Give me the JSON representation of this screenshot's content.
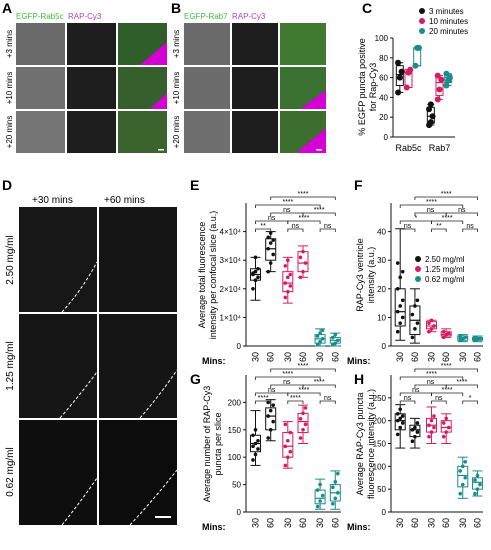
{
  "panels": {
    "A": {
      "letter": "A",
      "label_egfp": "EGFP-Rab5c",
      "label_rap": "RAP-Cy3",
      "rows": [
        "+3 mins",
        "+10 mins",
        "+20 mins"
      ]
    },
    "B": {
      "letter": "B",
      "label_egfp": "EGFP-Rab7",
      "label_rap": "RAP-Cy3",
      "rows": [
        "+3 mins",
        "+10 mins",
        "+20 mins"
      ]
    },
    "D": {
      "letter": "D",
      "cols": [
        "+30 mins",
        "+60 mins"
      ],
      "rows": [
        "2.50 mg/ml",
        "1.25 mg/ml",
        "0.62 mg/ml"
      ]
    }
  },
  "colors": {
    "c250": "#111111",
    "c125": "#d81b60",
    "c062": "#1a8c8c",
    "egfp": "#3fbf3f",
    "rap": "#b040c0",
    "sig": "#222222"
  },
  "chart_data": [
    {
      "panel": "C",
      "type": "box",
      "ylabel": "% EGFP puncta positive for Rap-Cy3",
      "ylim": [
        0,
        100
      ],
      "yticks": [
        0,
        20,
        40,
        60,
        80,
        100
      ],
      "categories": [
        "Rab5c",
        "Rab7"
      ],
      "legend": {
        "placement": "top-right",
        "entries": [
          "3 minutes",
          "10 minutes",
          "20 minutes"
        ]
      },
      "groups": [
        {
          "category": "Rab5c",
          "series": "3 minutes",
          "color": "c250",
          "points": [
            45,
            60,
            66,
            75
          ],
          "box": [
            45,
            52,
            63,
            72,
            75
          ]
        },
        {
          "category": "Rab5c",
          "series": "10 minutes",
          "color": "c125",
          "points": [
            50,
            65,
            68
          ],
          "box": [
            50,
            50,
            65,
            68,
            68
          ]
        },
        {
          "category": "Rab5c",
          "series": "20 minutes",
          "color": "c062",
          "points": [
            72,
            90,
            90
          ],
          "box": [
            72,
            72,
            90,
            90,
            90
          ]
        },
        {
          "category": "Rab7",
          "series": "3 minutes",
          "color": "c250",
          "points": [
            12,
            15,
            21,
            28,
            33
          ],
          "box": [
            12,
            14,
            21,
            30,
            33
          ]
        },
        {
          "category": "Rab7",
          "series": "10 minutes",
          "color": "c125",
          "points": [
            38,
            48,
            58,
            62
          ],
          "box": [
            38,
            42,
            55,
            60,
            62
          ]
        },
        {
          "category": "Rab7",
          "series": "20 minutes",
          "color": "c062",
          "points": [
            52,
            57,
            60,
            64
          ],
          "box": [
            52,
            55,
            60,
            63,
            64
          ]
        }
      ]
    },
    {
      "panel": "E",
      "type": "box",
      "ylabel": "Average total fluorescence intensity per confocal slice (a.u.)",
      "ylim": [
        0,
        50000
      ],
      "yticks": [
        0,
        10000,
        20000,
        30000,
        40000
      ],
      "ytick_labels": [
        "0",
        "1×10⁴",
        "2×10⁴",
        "3×10⁴",
        "4×10⁴"
      ],
      "xlabel": "Mins:",
      "categories": [
        "30",
        "60",
        "30",
        "60",
        "30",
        "60"
      ],
      "groups": [
        {
          "color": "c250",
          "points": [
            20000,
            23000,
            24000,
            25000,
            26000,
            27000,
            25500,
            31000
          ],
          "box": [
            16000,
            23000,
            25000,
            27000,
            31000
          ]
        },
        {
          "color": "c250",
          "points": [
            26000,
            29000,
            32000,
            34000,
            36000,
            37000,
            38000,
            39500
          ],
          "box": [
            26000,
            30000,
            34000,
            37500,
            40000
          ]
        },
        {
          "color": "c125",
          "points": [
            17000,
            19000,
            21000,
            22000,
            24000,
            25000,
            28000,
            30000
          ],
          "box": [
            15000,
            19000,
            22000,
            26000,
            31000
          ]
        },
        {
          "color": "c125",
          "points": [
            24000,
            26000,
            29000,
            31000,
            33000
          ],
          "box": [
            24000,
            26000,
            29000,
            33000,
            35000
          ]
        },
        {
          "color": "c062",
          "points": [
            500,
            1500,
            2500,
            3500,
            4500,
            5500
          ],
          "box": [
            0,
            1000,
            2500,
            4000,
            6000
          ]
        },
        {
          "color": "c062",
          "points": [
            500,
            1000,
            2000,
            3000,
            4000
          ],
          "box": [
            0,
            1000,
            2000,
            3000,
            4500
          ]
        }
      ],
      "significance": [
        {
          "from": 0,
          "to": 1,
          "label": "**",
          "level": 0
        },
        {
          "from": 2,
          "to": 3,
          "label": "ns",
          "level": 0
        },
        {
          "from": 4,
          "to": 5,
          "label": "ns",
          "level": 0
        },
        {
          "from": 0,
          "to": 2,
          "label": "ns",
          "level": 1
        },
        {
          "from": 2,
          "to": 4,
          "label": "****",
          "level": 1
        },
        {
          "from": 1,
          "to": 3,
          "label": "ns",
          "level": 2
        },
        {
          "from": 3,
          "to": 5,
          "label": "****",
          "level": 2
        },
        {
          "from": 0,
          "to": 4,
          "label": "****",
          "level": 3
        },
        {
          "from": 1,
          "to": 5,
          "label": "****",
          "level": 4
        }
      ]
    },
    {
      "panel": "F",
      "type": "box",
      "ylabel": "RAP-Cy3 ventricle intensity (a.u.)",
      "ylim": [
        0,
        50
      ],
      "yticks": [
        0,
        10,
        20,
        30,
        40
      ],
      "ytick_labels": [
        "0",
        "10",
        "20",
        "30",
        "40"
      ],
      "xlabel": "Mins:",
      "categories": [
        "30",
        "60",
        "30",
        "60",
        "30",
        "60"
      ],
      "legend": {
        "placement": "top-right",
        "entries": [
          "2.50 mg/ml",
          "1.25 mg/ml",
          "0.62 mg/ml"
        ]
      },
      "groups": [
        {
          "color": "c250",
          "points": [
            5,
            8,
            10,
            12,
            14,
            16,
            20,
            24,
            26,
            29
          ],
          "box": [
            2,
            7,
            12,
            20,
            41
          ]
        },
        {
          "color": "c250",
          "points": [
            3,
            6,
            8,
            11,
            14,
            16
          ],
          "box": [
            1,
            4,
            9,
            14,
            20
          ]
        },
        {
          "color": "c125",
          "points": [
            5,
            6,
            7,
            8,
            9
          ],
          "box": [
            5,
            6,
            7,
            8.5,
            9
          ]
        },
        {
          "color": "c125",
          "points": [
            3,
            4,
            4.5,
            5
          ],
          "box": [
            3,
            3.5,
            4,
            5,
            6
          ]
        },
        {
          "color": "c062",
          "points": [
            2,
            2.5,
            3,
            3.5
          ],
          "box": [
            1.5,
            2,
            2.8,
            3.5,
            4
          ]
        },
        {
          "color": "c062",
          "points": [
            2,
            2.3,
            2.6,
            3
          ],
          "box": [
            1.5,
            2,
            2.5,
            3,
            3.5
          ]
        }
      ],
      "significance": [
        {
          "from": 0,
          "to": 1,
          "label": "ns",
          "level": 0
        },
        {
          "from": 2,
          "to": 3,
          "label": "**",
          "level": 0
        },
        {
          "from": 4,
          "to": 5,
          "label": "ns",
          "level": 0
        },
        {
          "from": 0,
          "to": 2,
          "label": "*",
          "level": 1
        },
        {
          "from": 2,
          "to": 4,
          "label": "****",
          "level": 1
        },
        {
          "from": 1,
          "to": 3,
          "label": "ns",
          "level": 2
        },
        {
          "from": 3,
          "to": 5,
          "label": "ns",
          "level": 2
        },
        {
          "from": 0,
          "to": 4,
          "label": "****",
          "level": 3
        },
        {
          "from": 1,
          "to": 5,
          "label": "****",
          "level": 4
        }
      ]
    },
    {
      "panel": "G",
      "type": "box",
      "ylabel": "Average number of RAP-Cy3 puncta per slice",
      "ylim": [
        0,
        250
      ],
      "yticks": [
        0,
        50,
        100,
        150,
        200
      ],
      "ytick_labels": [
        "0",
        "50",
        "100",
        "150",
        "200"
      ],
      "xlabel": "Mins:",
      "categories": [
        "30",
        "60",
        "30",
        "60",
        "30",
        "60"
      ],
      "groups": [
        {
          "color": "c250",
          "points": [
            95,
            105,
            115,
            120,
            125,
            130,
            140,
            150
          ],
          "box": [
            85,
            110,
            125,
            140,
            185
          ]
        },
        {
          "color": "c250",
          "points": [
            135,
            150,
            165,
            175,
            185,
            195,
            200
          ],
          "box": [
            130,
            150,
            175,
            190,
            205
          ]
        },
        {
          "color": "c125",
          "points": [
            85,
            100,
            110,
            120,
            130,
            145,
            160
          ],
          "box": [
            80,
            100,
            120,
            145,
            165
          ]
        },
        {
          "color": "c125",
          "points": [
            135,
            150,
            160,
            170,
            180,
            190
          ],
          "box": [
            125,
            145,
            165,
            180,
            195
          ]
        },
        {
          "color": "c062",
          "points": [
            10,
            20,
            30,
            40,
            50
          ],
          "box": [
            5,
            15,
            25,
            40,
            60
          ]
        },
        {
          "color": "c062",
          "points": [
            15,
            25,
            35,
            45,
            55,
            70
          ],
          "box": [
            5,
            20,
            35,
            50,
            75
          ]
        }
      ],
      "significance": [
        {
          "from": 0,
          "to": 1,
          "label": "****",
          "level": 0
        },
        {
          "from": 2,
          "to": 3,
          "label": "****",
          "level": 0
        },
        {
          "from": 4,
          "to": 5,
          "label": "ns",
          "level": 0
        },
        {
          "from": 0,
          "to": 2,
          "label": "ns",
          "level": 1
        },
        {
          "from": 2,
          "to": 4,
          "label": "****",
          "level": 1
        },
        {
          "from": 1,
          "to": 3,
          "label": "ns",
          "level": 2
        },
        {
          "from": 3,
          "to": 5,
          "label": "****",
          "level": 2
        },
        {
          "from": 0,
          "to": 4,
          "label": "****",
          "level": 3
        },
        {
          "from": 1,
          "to": 5,
          "label": "****",
          "level": 4
        }
      ]
    },
    {
      "panel": "H",
      "type": "box",
      "ylabel": "Average RAP-Cy3 puncta fluorescence intensity (a.u.)",
      "ylim": [
        0,
        300
      ],
      "yticks": [
        0,
        50,
        100,
        150,
        200,
        250
      ],
      "ytick_labels": [
        "0",
        "50",
        "100",
        "150",
        "200",
        "250"
      ],
      "xlabel": "Mins:",
      "categories": [
        "30",
        "60",
        "30",
        "60",
        "30",
        "60"
      ],
      "groups": [
        {
          "color": "c250",
          "points": [
            170,
            185,
            195,
            200,
            205,
            210,
            215,
            225
          ],
          "box": [
            140,
            180,
            200,
            215,
            235
          ]
        },
        {
          "color": "c250",
          "points": [
            155,
            165,
            175,
            180,
            185,
            195
          ],
          "box": [
            140,
            165,
            180,
            190,
            205
          ]
        },
        {
          "color": "c125",
          "points": [
            165,
            175,
            185,
            190,
            200,
            210
          ],
          "box": [
            150,
            175,
            190,
            205,
            230
          ]
        },
        {
          "color": "c125",
          "points": [
            165,
            175,
            185,
            195,
            205
          ],
          "box": [
            150,
            175,
            185,
            200,
            215
          ]
        },
        {
          "color": "c062",
          "points": [
            40,
            60,
            75,
            90,
            100,
            110
          ],
          "box": [
            30,
            55,
            80,
            100,
            120
          ]
        },
        {
          "color": "c062",
          "points": [
            40,
            50,
            60,
            70,
            80
          ],
          "box": [
            35,
            50,
            65,
            75,
            90
          ]
        }
      ],
      "significance": [
        {
          "from": 0,
          "to": 1,
          "label": "ns",
          "level": 0
        },
        {
          "from": 2,
          "to": 3,
          "label": "ns",
          "level": 0
        },
        {
          "from": 4,
          "to": 5,
          "label": "*",
          "level": 0
        },
        {
          "from": 0,
          "to": 2,
          "label": "ns",
          "level": 1
        },
        {
          "from": 2,
          "to": 4,
          "label": "****",
          "level": 1
        },
        {
          "from": 1,
          "to": 3,
          "label": "ns",
          "level": 2
        },
        {
          "from": 3,
          "to": 5,
          "label": "****",
          "level": 2
        },
        {
          "from": 0,
          "to": 4,
          "label": "****",
          "level": 3
        },
        {
          "from": 1,
          "to": 5,
          "label": "****",
          "level": 4
        }
      ]
    }
  ]
}
